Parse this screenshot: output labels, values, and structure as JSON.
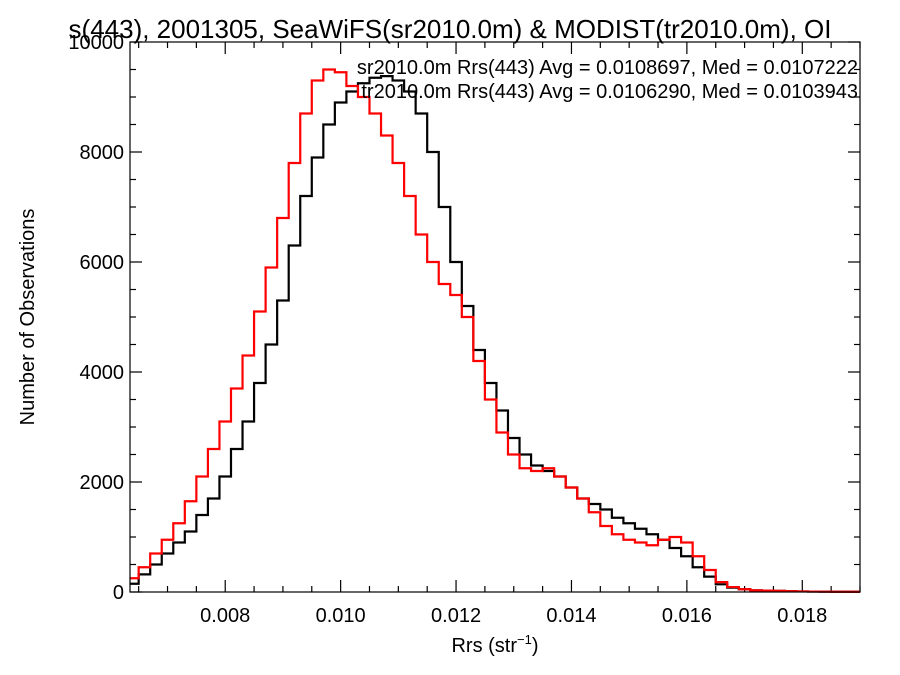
{
  "chart_data": {
    "type": "line",
    "title": "s(443), 2001305, SeaWiFS(sr2010.0m) & MODIST(tr2010.0m), OI",
    "xlabel_main": "Rrs (str",
    "xlabel_sup": "−1",
    "xlabel_close": ")",
    "ylabel": "Number of Observations",
    "xlim": [
      0.00635,
      0.019
    ],
    "ylim": [
      0,
      10000
    ],
    "x_ticks": [
      "0.008",
      "0.010",
      "0.012",
      "0.014",
      "0.016",
      "0.018"
    ],
    "y_ticks": [
      "0",
      "2000",
      "4000",
      "6000",
      "8000",
      "10000"
    ],
    "legend_placement": "top-right",
    "series": [
      {
        "name": "sr2010.0m Rrs(443) Avg = 0.0108697, Med = 0.0107222",
        "color": "#000000",
        "x": [
          0.00635,
          0.0065,
          0.0067,
          0.0069,
          0.0071,
          0.0073,
          0.0075,
          0.0077,
          0.0079,
          0.0081,
          0.0083,
          0.0085,
          0.0087,
          0.0089,
          0.0091,
          0.0093,
          0.0095,
          0.0097,
          0.0099,
          0.0101,
          0.0103,
          0.0105,
          0.0107,
          0.0109,
          0.0111,
          0.0113,
          0.0115,
          0.0117,
          0.0119,
          0.0121,
          0.0123,
          0.0125,
          0.0127,
          0.0129,
          0.0131,
          0.0133,
          0.0135,
          0.0137,
          0.0139,
          0.0141,
          0.0143,
          0.0145,
          0.0147,
          0.0149,
          0.0151,
          0.0153,
          0.0155,
          0.0157,
          0.0159,
          0.0161,
          0.0163,
          0.0165,
          0.0167,
          0.0169,
          0.0171,
          0.0173,
          0.0175,
          0.0177,
          0.0179,
          0.0181,
          0.0183,
          0.0185,
          0.0187,
          0.019
        ],
        "values": [
          150,
          320,
          500,
          700,
          900,
          1100,
          1400,
          1700,
          2100,
          2600,
          3100,
          3800,
          4500,
          5300,
          6300,
          7200,
          7900,
          8500,
          8900,
          9100,
          9250,
          9350,
          9380,
          9300,
          9100,
          8700,
          8000,
          7000,
          6000,
          5200,
          4400,
          3800,
          3300,
          2800,
          2500,
          2300,
          2200,
          2100,
          1900,
          1700,
          1600,
          1500,
          1350,
          1250,
          1150,
          1050,
          950,
          800,
          650,
          450,
          280,
          140,
          80,
          50,
          30,
          25,
          20,
          15,
          10,
          8,
          6,
          5,
          5,
          5
        ]
      },
      {
        "name": "tr2010.0m Rrs(443) Avg = 0.0106290, Med = 0.0103943",
        "color": "#ff0000",
        "x": [
          0.00635,
          0.0065,
          0.0067,
          0.0069,
          0.0071,
          0.0073,
          0.0075,
          0.0077,
          0.0079,
          0.0081,
          0.0083,
          0.0085,
          0.0087,
          0.0089,
          0.0091,
          0.0093,
          0.0095,
          0.0097,
          0.0099,
          0.0101,
          0.0103,
          0.0105,
          0.0107,
          0.0109,
          0.0111,
          0.0113,
          0.0115,
          0.0117,
          0.0119,
          0.0121,
          0.0123,
          0.0125,
          0.0127,
          0.0129,
          0.0131,
          0.0133,
          0.0135,
          0.0137,
          0.0139,
          0.0141,
          0.0143,
          0.0145,
          0.0147,
          0.0149,
          0.0151,
          0.0153,
          0.0155,
          0.0157,
          0.0159,
          0.0161,
          0.0163,
          0.0165,
          0.0167,
          0.0169,
          0.0171,
          0.0173,
          0.0175,
          0.0177,
          0.0179,
          0.0181,
          0.0183,
          0.0185,
          0.0187,
          0.019
        ],
        "values": [
          250,
          450,
          700,
          950,
          1250,
          1650,
          2100,
          2600,
          3100,
          3700,
          4300,
          5100,
          5900,
          6800,
          7800,
          8700,
          9300,
          9500,
          9450,
          9200,
          9000,
          8700,
          8300,
          7800,
          7200,
          6500,
          6000,
          5600,
          5400,
          5000,
          4200,
          3500,
          2900,
          2500,
          2250,
          2200,
          2250,
          2100,
          1900,
          1700,
          1450,
          1200,
          1050,
          950,
          900,
          850,
          950,
          1000,
          900,
          650,
          400,
          180,
          90,
          50,
          30,
          25,
          20,
          15,
          10,
          8,
          6,
          5,
          5,
          5
        ]
      }
    ]
  }
}
